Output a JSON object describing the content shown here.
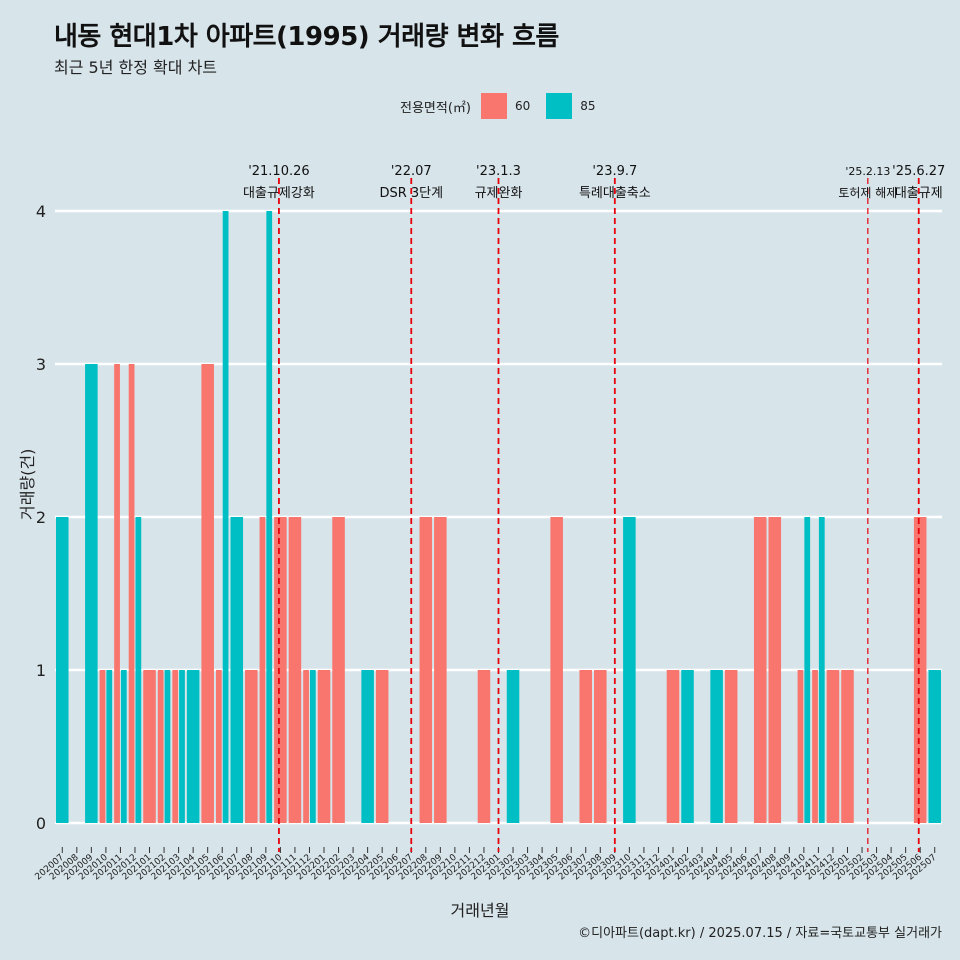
{
  "title": "내동 현대1차 아파트(1995) 거래량 변화 흐름",
  "subtitle": "최근 5년 한정 확대 차트",
  "caption": "©디아파트(dapt.kr) / 2025.07.15 / 자료=국토교통부 실거래가",
  "legend": {
    "title": "전용면적(㎡)",
    "items": [
      {
        "label": "60",
        "color": "#f8766d"
      },
      {
        "label": "85",
        "color": "#00bfc4"
      }
    ]
  },
  "chart_data": {
    "type": "bar",
    "title": "내동 현대1차 아파트(1995) 거래량 변화 흐름",
    "xlabel": "거래년월",
    "ylabel": "거래량(건)",
    "ylim": [
      0,
      4
    ],
    "yticks": [
      0,
      1,
      2,
      3,
      4
    ],
    "categories": [
      "202007",
      "202008",
      "202009",
      "202010",
      "202011",
      "202012",
      "202101",
      "202102",
      "202103",
      "202104",
      "202105",
      "202106",
      "202107",
      "202108",
      "202109",
      "202110",
      "202111",
      "202112",
      "202201",
      "202202",
      "202203",
      "202204",
      "202205",
      "202206",
      "202207",
      "202208",
      "202209",
      "202210",
      "202211",
      "202212",
      "202301",
      "202302",
      "202303",
      "202304",
      "202305",
      "202306",
      "202307",
      "202308",
      "202309",
      "202310",
      "202311",
      "202312",
      "202401",
      "202402",
      "202403",
      "202404",
      "202405",
      "202406",
      "202407",
      "202408",
      "202409",
      "202410",
      "202411",
      "202412",
      "202501",
      "202502",
      "202503",
      "202504",
      "202505",
      "202506",
      "202507"
    ],
    "series": [
      {
        "name": "60",
        "color": "#f8766d",
        "values": [
          0,
          0,
          0,
          1,
          3,
          3,
          1,
          1,
          1,
          0,
          3,
          1,
          0,
          1,
          2,
          2,
          2,
          1,
          1,
          2,
          0,
          0,
          1,
          0,
          0,
          2,
          2,
          0,
          0,
          1,
          0,
          0,
          0,
          0,
          2,
          0,
          1,
          1,
          0,
          0,
          0,
          0,
          1,
          0,
          0,
          0,
          1,
          0,
          2,
          2,
          0,
          1,
          1,
          1,
          1,
          0,
          0,
          0,
          0,
          2,
          0
        ]
      },
      {
        "name": "85",
        "color": "#00bfc4",
        "values": [
          2,
          0,
          3,
          1,
          1,
          2,
          0,
          1,
          1,
          1,
          0,
          4,
          2,
          0,
          4,
          0,
          0,
          1,
          0,
          0,
          0,
          1,
          0,
          0,
          0,
          0,
          0,
          0,
          0,
          0,
          0,
          1,
          0,
          0,
          0,
          0,
          0,
          0,
          0,
          2,
          0,
          0,
          0,
          1,
          0,
          1,
          0,
          0,
          0,
          0,
          0,
          2,
          2,
          0,
          0,
          0,
          0,
          0,
          0,
          0,
          1
        ]
      }
    ],
    "annotations": [
      {
        "index": 15.4,
        "date": "'21.10.26",
        "label": "대출규제강화",
        "style": "thick"
      },
      {
        "index": 24.5,
        "date": "'22.07",
        "label": "DSR 3단계",
        "style": "thick"
      },
      {
        "index": 30.5,
        "date": "'23.1.3",
        "label": "규제완화",
        "style": "thick"
      },
      {
        "index": 38.5,
        "date": "'23.9.7",
        "label": "특례대출축소",
        "style": "thick"
      },
      {
        "index": 55.9,
        "date": "'25.2.13",
        "label": "토허제 해제",
        "style": "thin"
      },
      {
        "index": 59.4,
        "date": "'25.6.27",
        "label": "대출규제",
        "style": "thick"
      }
    ]
  }
}
